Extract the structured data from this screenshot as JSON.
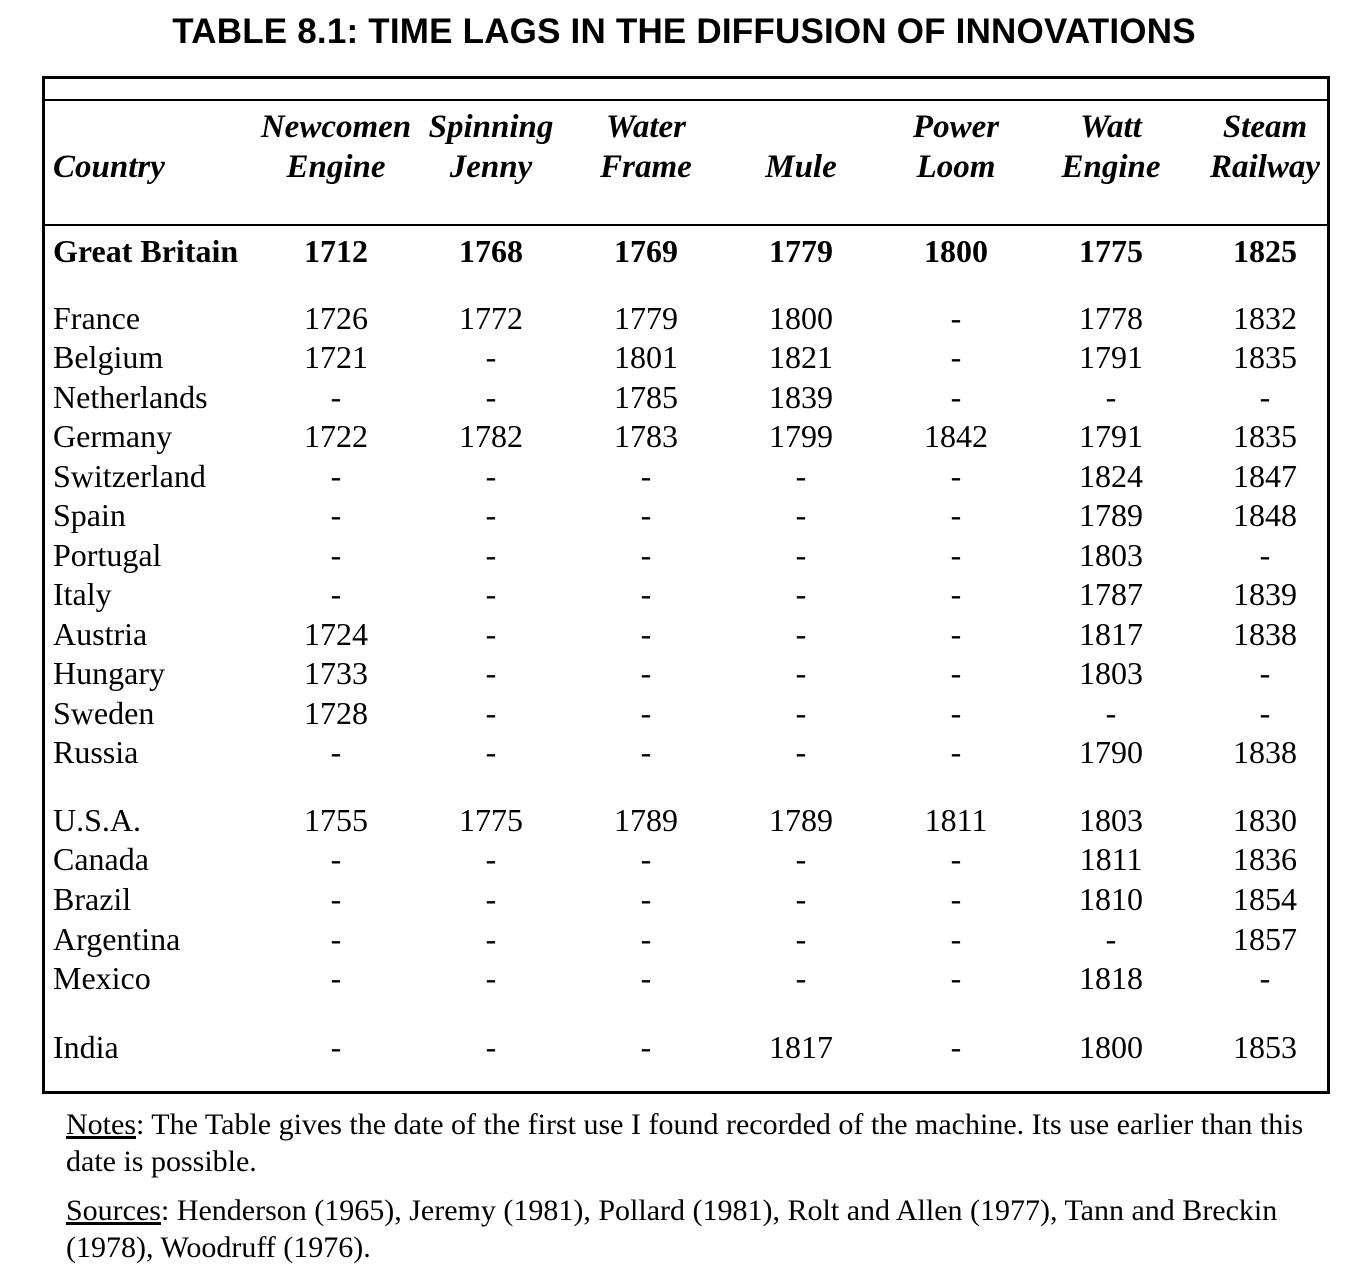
{
  "title": "TABLE 8.1:  TIME LAGS IN THE DIFFUSION OF INNOVATIONS",
  "columns": [
    {
      "line1": "",
      "line2": "Country"
    },
    {
      "line1": "Newcomen",
      "line2": "Engine"
    },
    {
      "line1": "Spinning",
      "line2": "Jenny"
    },
    {
      "line1": "Water",
      "line2": "Frame"
    },
    {
      "line1": "",
      "line2": "Mule"
    },
    {
      "line1": "Power",
      "line2": "Loom"
    },
    {
      "line1": "Watt",
      "line2": "Engine"
    },
    {
      "line1": "Steam",
      "line2": "Railway"
    }
  ],
  "rows": [
    {
      "country": "Great Britain",
      "bold": true,
      "values": [
        "1712",
        "1768",
        "1769",
        "1779",
        "1800",
        "1775",
        "1825"
      ]
    },
    {
      "country": "France",
      "values": [
        "1726",
        "1772",
        "1779",
        "1800",
        "-",
        "1778",
        "1832"
      ]
    },
    {
      "country": "Belgium",
      "values": [
        "1721",
        "-",
        "1801",
        "1821",
        "-",
        "1791",
        "1835"
      ]
    },
    {
      "country": "Netherlands",
      "values": [
        "-",
        "-",
        "1785",
        "1839",
        "-",
        "-",
        "-"
      ]
    },
    {
      "country": "Germany",
      "values": [
        "1722",
        "1782",
        "1783",
        "1799",
        "1842",
        "1791",
        "1835"
      ]
    },
    {
      "country": "Switzerland",
      "values": [
        "-",
        "-",
        "-",
        "-",
        "-",
        "1824",
        "1847"
      ]
    },
    {
      "country": "Spain",
      "values": [
        "-",
        "-",
        "-",
        "-",
        "-",
        "1789",
        "1848"
      ]
    },
    {
      "country": "Portugal",
      "values": [
        "-",
        "-",
        "-",
        "-",
        "-",
        "1803",
        "-"
      ]
    },
    {
      "country": "Italy",
      "values": [
        "-",
        "-",
        "-",
        "-",
        "-",
        "1787",
        "1839"
      ]
    },
    {
      "country": "Austria",
      "values": [
        "1724",
        "-",
        "-",
        "-",
        "-",
        "1817",
        "1838"
      ]
    },
    {
      "country": "Hungary",
      "values": [
        "1733",
        "-",
        "-",
        "-",
        "-",
        "1803",
        "-"
      ]
    },
    {
      "country": "Sweden",
      "values": [
        "1728",
        "-",
        "-",
        "-",
        "-",
        "-",
        "-"
      ]
    },
    {
      "country": "Russia",
      "values": [
        "-",
        "-",
        "-",
        "-",
        "-",
        "1790",
        "1838"
      ]
    },
    {
      "country": "U.S.A.",
      "values": [
        "1755",
        "1775",
        "1789",
        "1789",
        "1811",
        "1803",
        "1830"
      ]
    },
    {
      "country": "Canada",
      "values": [
        "-",
        "-",
        "-",
        "-",
        "-",
        "1811",
        "1836"
      ]
    },
    {
      "country": "Brazil",
      "values": [
        "-",
        "-",
        "-",
        "-",
        "-",
        "1810",
        "1854"
      ]
    },
    {
      "country": "Argentina",
      "values": [
        "-",
        "-",
        "-",
        "-",
        "-",
        "-",
        "1857"
      ]
    },
    {
      "country": "Mexico",
      "values": [
        "-",
        "-",
        "-",
        "-",
        "-",
        "1818",
        "-"
      ]
    },
    {
      "country": "India",
      "values": [
        "-",
        "-",
        "-",
        "1817",
        "-",
        "1800",
        "1853"
      ]
    }
  ],
  "notes": {
    "notes_label": "Notes",
    "notes_text": ":  The Table gives the date of the first use I found recorded of the machine.  Its use earlier than this date is possible.",
    "sources_label": "Sources",
    "sources_text": ":  Henderson (1965), Jeremy (1981), Pollard (1981), Rolt and Allen (1977), Tann and Breckin (1978), Woodruff (1976)."
  }
}
